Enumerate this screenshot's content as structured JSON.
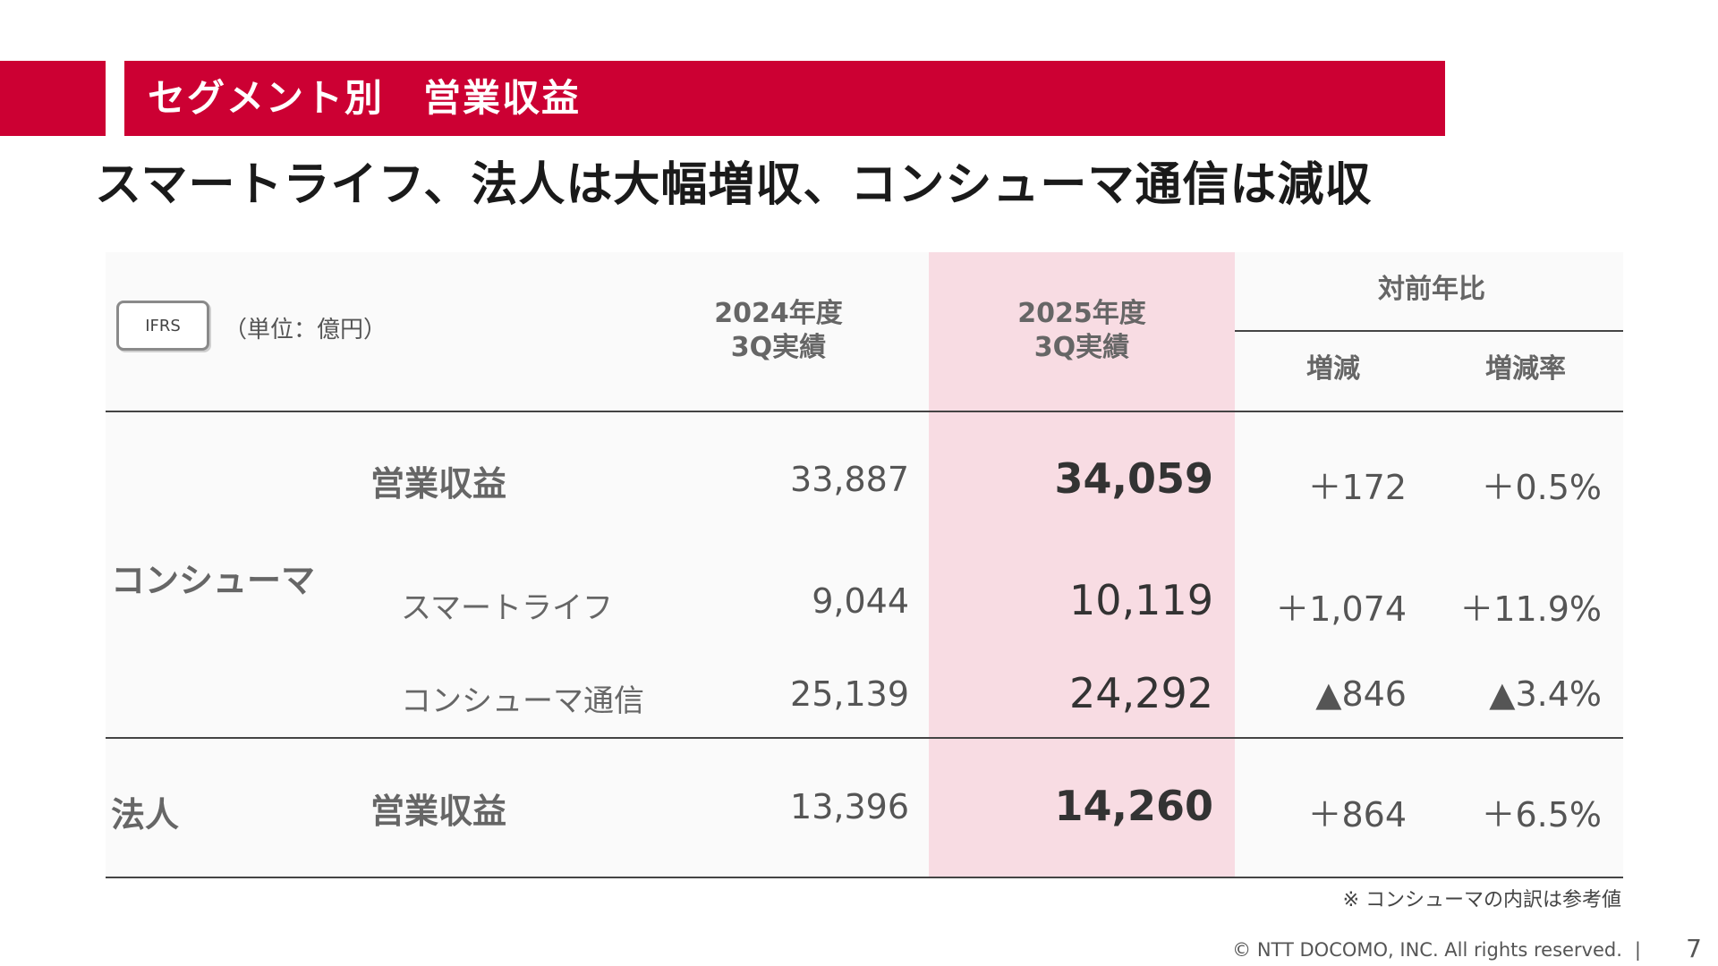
{
  "header": {
    "section_title": "セグメント別　営業収益",
    "headline": "スマートライフ、法人は大幅増収、コンシューマ通信は減収"
  },
  "table": {
    "badge": "IFRS",
    "unit": "（単位：億円）",
    "columns": {
      "prev_line1": "2024年度",
      "prev_line2": "3Q実績",
      "cur_line1": "2025年度",
      "cur_line2": "3Q実績",
      "yoy": "対前年比",
      "diff": "増減",
      "rate": "増減率"
    },
    "segments": {
      "consumer": "コンシューマ",
      "corporate": "法人"
    },
    "rows": [
      {
        "label": "営業収益",
        "prev": "33,887",
        "cur": "34,059",
        "diff": "＋172",
        "rate": "＋0.5%"
      },
      {
        "label": "スマートライフ",
        "prev": "9,044",
        "cur": "10,119",
        "diff": "＋1,074",
        "rate": "＋11.9%"
      },
      {
        "label": "コンシューマ通信",
        "prev": "25,139",
        "cur": "24,292",
        "diff": "▲846",
        "rate": "▲3.4%"
      },
      {
        "label": "営業収益",
        "prev": "13,396",
        "cur": "14,260",
        "diff": "＋864",
        "rate": "＋6.5%"
      }
    ]
  },
  "footer": {
    "note": "※ コンシューマの内訳は参考値",
    "copyright": "© NTT DOCOMO, INC.  All rights reserved.",
    "separator": "|",
    "page": "7"
  },
  "colors": {
    "brand_red": "#cc0033",
    "highlight_pink": "#f8dce3"
  }
}
